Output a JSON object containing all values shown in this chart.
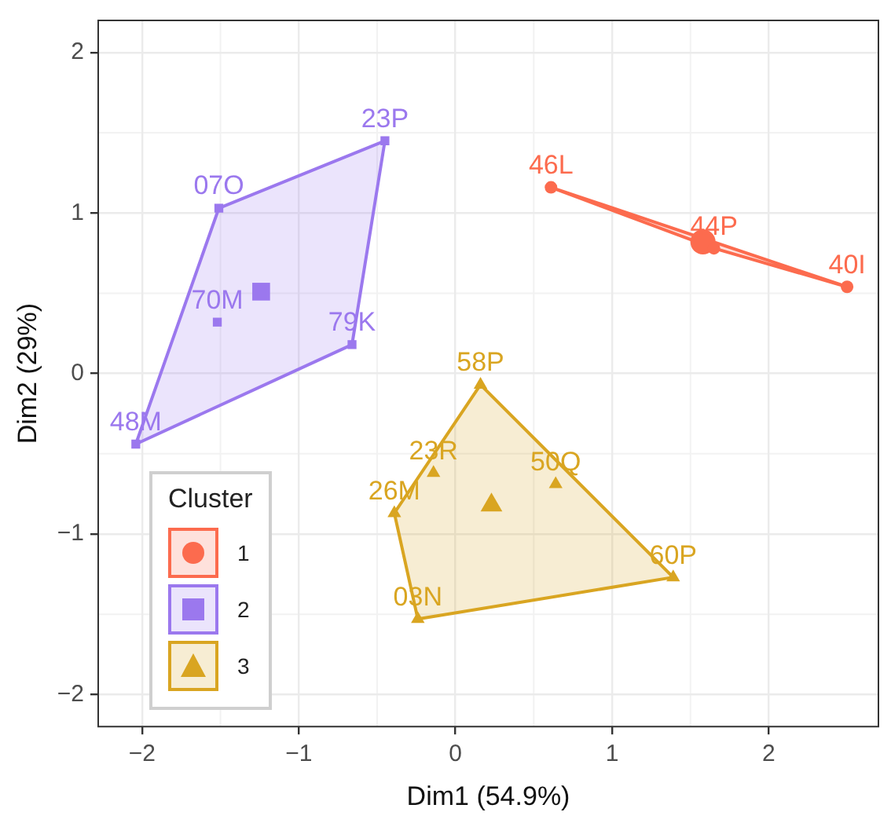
{
  "chart_data": {
    "type": "scatter",
    "xlabel": "Dim1 (54.9%)",
    "ylabel": "Dim2 (29%)",
    "legend_title": "Cluster",
    "legend": "bottom left",
    "grid": true,
    "xlim": [
      -2.28,
      2.7
    ],
    "ylim": [
      -2.2,
      2.2
    ],
    "xticks": [
      -2,
      -1,
      0,
      1,
      2
    ],
    "yticks": [
      -2,
      -1,
      0,
      1,
      2
    ],
    "series": [
      {
        "name": "1",
        "color": "#fc6b4e",
        "marker": "circle",
        "x": [
          0.61,
          1.65,
          2.5
        ],
        "values": [
          1.16,
          0.78,
          0.54
        ]
      },
      {
        "name": "2",
        "color": "#9b78ee",
        "marker": "square",
        "x": [
          -0.45,
          -1.51,
          -1.52,
          -0.66,
          -2.04
        ],
        "values": [
          1.45,
          1.03,
          0.32,
          0.18,
          -0.44
        ]
      },
      {
        "name": "3",
        "color": "#d9a521",
        "marker": "triangle",
        "x": [
          0.16,
          -0.14,
          0.64,
          -0.39,
          1.39,
          -0.24
        ],
        "values": [
          -0.07,
          -0.62,
          -0.69,
          -0.87,
          -1.27,
          -1.53
        ]
      },
      {
        "color": "#fc6b4e",
        "marker": "circle",
        "x": [
          1.58
        ],
        "values": [
          0.82
        ]
      },
      {
        "color": "#9b78ee",
        "marker": "square",
        "x": [
          -1.24
        ],
        "values": [
          0.51
        ]
      },
      {
        "color": "#d9a521",
        "marker": "triangle",
        "x": [
          0.23
        ],
        "values": [
          -0.82
        ]
      }
    ],
    "annotations": [
      {
        "text": "46L",
        "x": 0.61,
        "y": 1.16
      },
      {
        "text": "44P",
        "x": 1.65,
        "y": 0.78
      },
      {
        "text": "40I",
        "x": 2.5,
        "y": 0.54
      },
      {
        "text": "23P",
        "x": -0.45,
        "y": 1.45
      },
      {
        "text": "07O",
        "x": -1.51,
        "y": 1.03
      },
      {
        "text": "70M",
        "x": -1.52,
        "y": 0.32
      },
      {
        "text": "79K",
        "x": -0.66,
        "y": 0.18
      },
      {
        "text": "48M",
        "x": -2.04,
        "y": -0.44
      },
      {
        "text": "58P",
        "x": 0.16,
        "y": -0.07
      },
      {
        "text": "23R",
        "x": -0.14,
        "y": -0.62
      },
      {
        "text": "50Q",
        "x": 0.64,
        "y": -0.69
      },
      {
        "text": "26M",
        "x": -0.39,
        "y": -0.87
      },
      {
        "text": "60P",
        "x": 1.39,
        "y": -1.27
      },
      {
        "text": "03N",
        "x": -0.24,
        "y": -1.53
      }
    ]
  }
}
